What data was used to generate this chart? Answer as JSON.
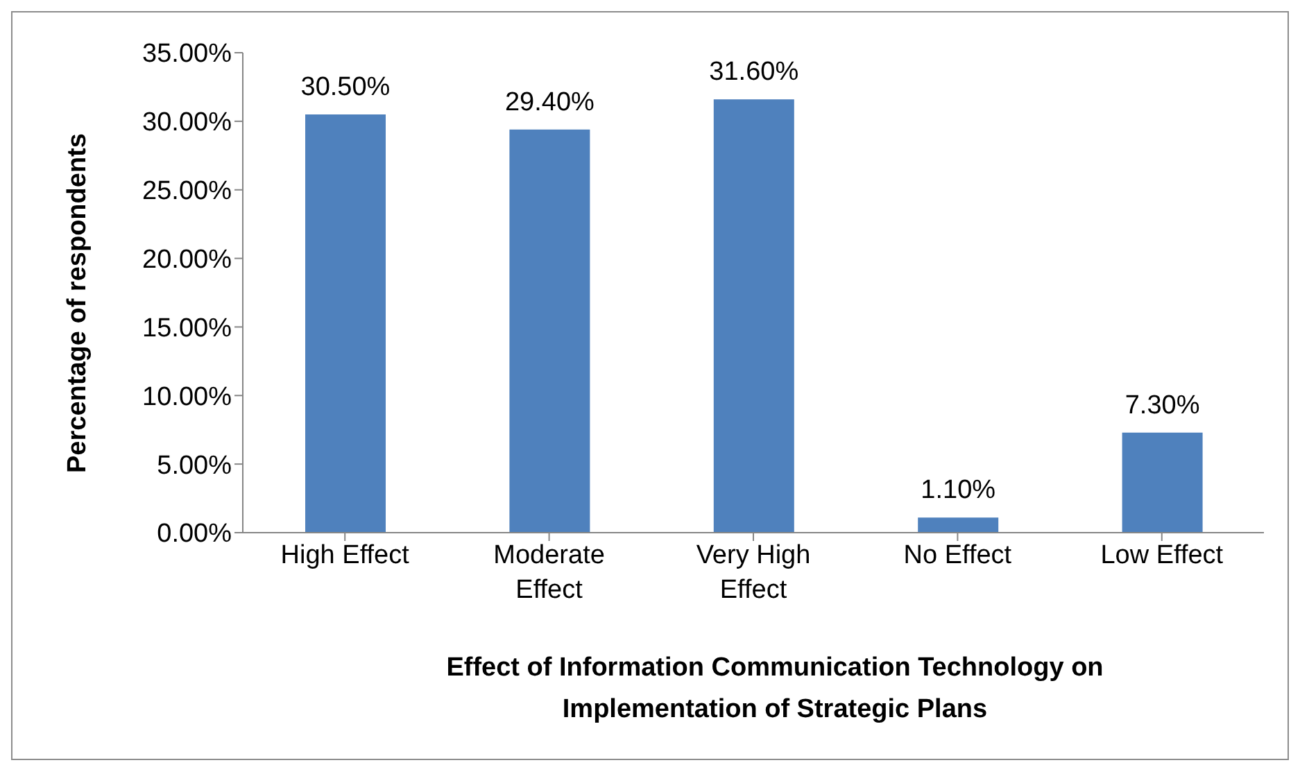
{
  "chart_data": {
    "type": "bar",
    "xlabel": "Effect of Information Communication Technology on Implementation of Strategic Plans",
    "ylabel": "Percentage of respondents",
    "categories": [
      "High Effect",
      "Moderate Effect",
      "Very High Effect",
      "No Effect",
      "Low Effect"
    ],
    "values": [
      30.5,
      29.4,
      31.6,
      1.1,
      7.3
    ],
    "color": "#4f81bd",
    "value_labels": [
      "30.50%",
      "29.40%",
      "31.60%",
      "1.10%",
      "7.30%"
    ],
    "ylim": [
      0,
      35
    ],
    "yticks": [
      {
        "value": 0,
        "label": "0.00%"
      },
      {
        "value": 5,
        "label": "5.00%"
      },
      {
        "value": 10,
        "label": "10.00%"
      },
      {
        "value": 15,
        "label": "15.00%"
      },
      {
        "value": 20,
        "label": "20.00%"
      },
      {
        "value": 25,
        "label": "25.00%"
      },
      {
        "value": 30,
        "label": "30.00%"
      },
      {
        "value": 35,
        "label": "35.00%"
      }
    ],
    "grid": false,
    "legend": false
  }
}
